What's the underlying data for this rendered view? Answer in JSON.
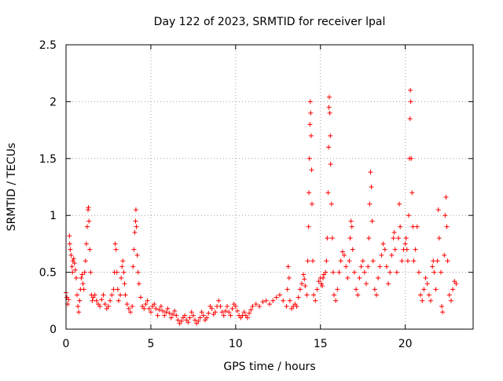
{
  "chart_data": {
    "type": "scatter",
    "title": "Day 122 of 2023, SRMTID for receiver lpal",
    "xlabel": "GPS time / hours",
    "ylabel": "SRMTID / TECUs",
    "xlim": [
      0,
      24
    ],
    "ylim": [
      0,
      2.5
    ],
    "xticks": [
      0,
      5,
      10,
      15,
      20
    ],
    "xtick_labels": [
      "0",
      "5",
      "10",
      "15",
      "20"
    ],
    "yticks": [
      0,
      0.5,
      1,
      1.5,
      2,
      2.5
    ],
    "ytick_labels": [
      "0",
      "0.5",
      "1",
      "1.5",
      "2",
      "2.5"
    ],
    "grid": true,
    "marker": "+",
    "series": [
      {
        "name": "lpal",
        "color": "#ff0000",
        "points": [
          [
            0.0,
            0.32
          ],
          [
            0.05,
            0.28
          ],
          [
            0.1,
            0.22
          ],
          [
            0.15,
            0.26
          ],
          [
            0.2,
            0.82
          ],
          [
            0.22,
            0.75
          ],
          [
            0.25,
            0.7
          ],
          [
            0.3,
            0.65
          ],
          [
            0.35,
            0.55
          ],
          [
            0.38,
            0.5
          ],
          [
            0.4,
            0.6
          ],
          [
            0.45,
            0.62
          ],
          [
            0.5,
            0.58
          ],
          [
            0.55,
            0.52
          ],
          [
            0.6,
            0.45
          ],
          [
            0.65,
            0.3
          ],
          [
            0.7,
            0.2
          ],
          [
            0.75,
            0.15
          ],
          [
            0.8,
            0.25
          ],
          [
            0.85,
            0.35
          ],
          [
            0.9,
            0.45
          ],
          [
            0.95,
            0.48
          ],
          [
            1.0,
            0.4
          ],
          [
            1.05,
            0.35
          ],
          [
            1.1,
            0.5
          ],
          [
            1.15,
            0.6
          ],
          [
            1.2,
            0.75
          ],
          [
            1.25,
            0.9
          ],
          [
            1.3,
            1.05
          ],
          [
            1.32,
            1.07
          ],
          [
            1.35,
            0.95
          ],
          [
            1.4,
            0.7
          ],
          [
            1.45,
            0.5
          ],
          [
            1.5,
            0.3
          ],
          [
            1.55,
            0.25
          ],
          [
            1.6,
            0.28
          ],
          [
            1.7,
            0.3
          ],
          [
            1.8,
            0.25
          ],
          [
            1.9,
            0.22
          ],
          [
            2.0,
            0.2
          ],
          [
            2.1,
            0.26
          ],
          [
            2.2,
            0.3
          ],
          [
            2.3,
            0.22
          ],
          [
            2.4,
            0.18
          ],
          [
            2.5,
            0.2
          ],
          [
            2.6,
            0.25
          ],
          [
            2.7,
            0.3
          ],
          [
            2.8,
            0.35
          ],
          [
            2.85,
            0.5
          ],
          [
            2.9,
            0.75
          ],
          [
            2.95,
            0.7
          ],
          [
            3.0,
            0.5
          ],
          [
            3.05,
            0.35
          ],
          [
            3.1,
            0.25
          ],
          [
            3.2,
            0.3
          ],
          [
            3.25,
            0.45
          ],
          [
            3.3,
            0.55
          ],
          [
            3.35,
            0.6
          ],
          [
            3.4,
            0.5
          ],
          [
            3.45,
            0.4
          ],
          [
            3.5,
            0.3
          ],
          [
            3.6,
            0.22
          ],
          [
            3.7,
            0.18
          ],
          [
            3.8,
            0.15
          ],
          [
            3.9,
            0.2
          ],
          [
            3.95,
            0.55
          ],
          [
            4.0,
            0.7
          ],
          [
            4.05,
            0.85
          ],
          [
            4.1,
            0.95
          ],
          [
            4.12,
            1.05
          ],
          [
            4.15,
            0.9
          ],
          [
            4.2,
            0.65
          ],
          [
            4.25,
            0.5
          ],
          [
            4.3,
            0.4
          ],
          [
            4.4,
            0.28
          ],
          [
            4.5,
            0.2
          ],
          [
            4.6,
            0.18
          ],
          [
            4.7,
            0.22
          ],
          [
            4.8,
            0.25
          ],
          [
            4.9,
            0.18
          ],
          [
            5.0,
            0.15
          ],
          [
            5.1,
            0.2
          ],
          [
            5.2,
            0.22
          ],
          [
            5.3,
            0.18
          ],
          [
            5.4,
            0.12
          ],
          [
            5.5,
            0.17
          ],
          [
            5.6,
            0.2
          ],
          [
            5.7,
            0.16
          ],
          [
            5.8,
            0.12
          ],
          [
            5.9,
            0.15
          ],
          [
            6.0,
            0.18
          ],
          [
            6.1,
            0.14
          ],
          [
            6.2,
            0.1
          ],
          [
            6.3,
            0.13
          ],
          [
            6.4,
            0.16
          ],
          [
            6.5,
            0.12
          ],
          [
            6.6,
            0.08
          ],
          [
            6.7,
            0.05
          ],
          [
            6.8,
            0.07
          ],
          [
            6.9,
            0.1
          ],
          [
            7.0,
            0.12
          ],
          [
            7.1,
            0.08
          ],
          [
            7.2,
            0.06
          ],
          [
            7.3,
            0.1
          ],
          [
            7.4,
            0.15
          ],
          [
            7.5,
            0.12
          ],
          [
            7.6,
            0.08
          ],
          [
            7.7,
            0.05
          ],
          [
            7.8,
            0.07
          ],
          [
            7.9,
            0.1
          ],
          [
            8.0,
            0.15
          ],
          [
            8.1,
            0.12
          ],
          [
            8.2,
            0.08
          ],
          [
            8.3,
            0.1
          ],
          [
            8.4,
            0.14
          ],
          [
            8.5,
            0.2
          ],
          [
            8.6,
            0.18
          ],
          [
            8.7,
            0.13
          ],
          [
            8.8,
            0.15
          ],
          [
            8.9,
            0.2
          ],
          [
            9.0,
            0.25
          ],
          [
            9.1,
            0.2
          ],
          [
            9.2,
            0.15
          ],
          [
            9.3,
            0.12
          ],
          [
            9.4,
            0.16
          ],
          [
            9.5,
            0.2
          ],
          [
            9.6,
            0.15
          ],
          [
            9.7,
            0.12
          ],
          [
            9.8,
            0.18
          ],
          [
            9.9,
            0.22
          ],
          [
            10.0,
            0.2
          ],
          [
            10.1,
            0.16
          ],
          [
            10.2,
            0.12
          ],
          [
            10.3,
            0.1
          ],
          [
            10.4,
            0.12
          ],
          [
            10.5,
            0.15
          ],
          [
            10.6,
            0.12
          ],
          [
            10.7,
            0.1
          ],
          [
            10.8,
            0.14
          ],
          [
            10.9,
            0.17
          ],
          [
            11.0,
            0.2
          ],
          [
            11.2,
            0.22
          ],
          [
            11.4,
            0.2
          ],
          [
            11.6,
            0.24
          ],
          [
            11.8,
            0.25
          ],
          [
            12.0,
            0.22
          ],
          [
            12.2,
            0.25
          ],
          [
            12.4,
            0.28
          ],
          [
            12.6,
            0.3
          ],
          [
            12.8,
            0.25
          ],
          [
            13.0,
            0.2
          ],
          [
            13.05,
            0.35
          ],
          [
            13.1,
            0.55
          ],
          [
            13.15,
            0.45
          ],
          [
            13.2,
            0.25
          ],
          [
            13.3,
            0.18
          ],
          [
            13.4,
            0.2
          ],
          [
            13.5,
            0.22
          ],
          [
            13.6,
            0.2
          ],
          [
            13.7,
            0.28
          ],
          [
            13.8,
            0.35
          ],
          [
            13.9,
            0.4
          ],
          [
            14.0,
            0.48
          ],
          [
            14.05,
            0.44
          ],
          [
            14.1,
            0.38
          ],
          [
            14.2,
            0.3
          ],
          [
            14.25,
            0.6
          ],
          [
            14.3,
            0.9
          ],
          [
            14.32,
            1.2
          ],
          [
            14.35,
            1.5
          ],
          [
            14.38,
            1.8
          ],
          [
            14.4,
            2.0
          ],
          [
            14.42,
            1.9
          ],
          [
            14.45,
            1.7
          ],
          [
            14.48,
            1.4
          ],
          [
            14.5,
            1.1
          ],
          [
            14.55,
            0.6
          ],
          [
            14.6,
            0.3
          ],
          [
            14.7,
            0.25
          ],
          [
            14.8,
            0.35
          ],
          [
            14.9,
            0.42
          ],
          [
            15.0,
            0.45
          ],
          [
            15.05,
            0.4
          ],
          [
            15.1,
            0.38
          ],
          [
            15.15,
            0.45
          ],
          [
            15.2,
            0.48
          ],
          [
            15.3,
            0.5
          ],
          [
            15.35,
            0.6
          ],
          [
            15.4,
            0.8
          ],
          [
            15.45,
            1.2
          ],
          [
            15.48,
            1.6
          ],
          [
            15.5,
            1.95
          ],
          [
            15.52,
            2.04
          ],
          [
            15.55,
            1.9
          ],
          [
            15.58,
            1.7
          ],
          [
            15.6,
            1.45
          ],
          [
            15.65,
            1.1
          ],
          [
            15.7,
            0.8
          ],
          [
            15.75,
            0.5
          ],
          [
            15.8,
            0.3
          ],
          [
            15.9,
            0.25
          ],
          [
            16.0,
            0.35
          ],
          [
            16.1,
            0.5
          ],
          [
            16.2,
            0.6
          ],
          [
            16.3,
            0.68
          ],
          [
            16.4,
            0.65
          ],
          [
            16.5,
            0.55
          ],
          [
            16.6,
            0.45
          ],
          [
            16.7,
            0.6
          ],
          [
            16.75,
            0.8
          ],
          [
            16.8,
            0.95
          ],
          [
            16.85,
            0.9
          ],
          [
            16.9,
            0.7
          ],
          [
            17.0,
            0.5
          ],
          [
            17.1,
            0.35
          ],
          [
            17.2,
            0.3
          ],
          [
            17.3,
            0.45
          ],
          [
            17.4,
            0.55
          ],
          [
            17.5,
            0.6
          ],
          [
            17.6,
            0.5
          ],
          [
            17.7,
            0.4
          ],
          [
            17.8,
            0.55
          ],
          [
            17.85,
            0.8
          ],
          [
            17.9,
            1.1
          ],
          [
            17.95,
            1.38
          ],
          [
            18.0,
            1.25
          ],
          [
            18.05,
            0.95
          ],
          [
            18.1,
            0.6
          ],
          [
            18.2,
            0.35
          ],
          [
            18.3,
            0.3
          ],
          [
            18.4,
            0.45
          ],
          [
            18.5,
            0.55
          ],
          [
            18.6,
            0.65
          ],
          [
            18.7,
            0.75
          ],
          [
            18.8,
            0.7
          ],
          [
            18.9,
            0.55
          ],
          [
            19.0,
            0.4
          ],
          [
            19.1,
            0.5
          ],
          [
            19.2,
            0.65
          ],
          [
            19.3,
            0.8
          ],
          [
            19.35,
            0.85
          ],
          [
            19.4,
            0.7
          ],
          [
            19.5,
            0.5
          ],
          [
            19.6,
            0.8
          ],
          [
            19.65,
            1.1
          ],
          [
            19.7,
            0.9
          ],
          [
            19.8,
            0.6
          ],
          [
            19.9,
            0.7
          ],
          [
            20.0,
            0.75
          ],
          [
            20.05,
            0.8
          ],
          [
            20.1,
            0.7
          ],
          [
            20.15,
            0.6
          ],
          [
            20.2,
            1.0
          ],
          [
            20.25,
            1.5
          ],
          [
            20.28,
            1.85
          ],
          [
            20.3,
            2.1
          ],
          [
            20.32,
            2.0
          ],
          [
            20.35,
            1.5
          ],
          [
            20.4,
            1.2
          ],
          [
            20.45,
            0.9
          ],
          [
            20.5,
            0.6
          ],
          [
            20.6,
            0.7
          ],
          [
            20.7,
            0.9
          ],
          [
            20.8,
            0.5
          ],
          [
            20.9,
            0.3
          ],
          [
            21.0,
            0.25
          ],
          [
            21.1,
            0.35
          ],
          [
            21.2,
            0.45
          ],
          [
            21.3,
            0.4
          ],
          [
            21.4,
            0.3
          ],
          [
            21.5,
            0.25
          ],
          [
            21.6,
            0.55
          ],
          [
            21.65,
            0.6
          ],
          [
            21.7,
            0.5
          ],
          [
            21.8,
            0.35
          ],
          [
            21.9,
            0.6
          ],
          [
            21.95,
            1.05
          ],
          [
            22.0,
            0.8
          ],
          [
            22.1,
            0.5
          ],
          [
            22.15,
            0.2
          ],
          [
            22.2,
            0.15
          ],
          [
            22.3,
            0.65
          ],
          [
            22.35,
            1.0
          ],
          [
            22.4,
            1.16
          ],
          [
            22.45,
            0.9
          ],
          [
            22.5,
            0.6
          ],
          [
            22.6,
            0.3
          ],
          [
            22.7,
            0.25
          ],
          [
            22.8,
            0.35
          ],
          [
            22.9,
            0.42
          ],
          [
            23.0,
            0.4
          ]
        ]
      }
    ]
  }
}
